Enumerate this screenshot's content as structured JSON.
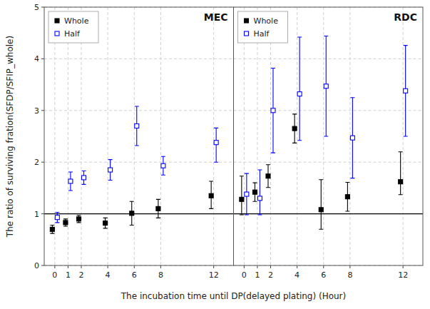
{
  "chart_data": [
    {
      "type": "scatter",
      "title": "MEC",
      "x": [
        0,
        1,
        2,
        4,
        6,
        8,
        12
      ],
      "series": [
        {
          "name": "Whole",
          "color": "#000000",
          "marker": "square",
          "values": [
            0.7,
            0.83,
            0.9,
            0.82,
            1.01,
            1.1,
            1.35
          ],
          "error_low": [
            0.08,
            0.07,
            0.07,
            0.1,
            0.23,
            0.18,
            0.25
          ],
          "error_high": [
            0.08,
            0.07,
            0.07,
            0.1,
            0.23,
            0.18,
            0.28
          ]
        },
        {
          "name": "Half",
          "color": "#0000ff",
          "marker": "open-square",
          "values": [
            0.93,
            1.63,
            1.7,
            1.85,
            2.7,
            1.93,
            2.38
          ],
          "error_low": [
            0.1,
            0.18,
            0.13,
            0.2,
            0.38,
            0.18,
            0.38
          ],
          "error_high": [
            0.1,
            0.18,
            0.13,
            0.2,
            0.38,
            0.18,
            0.28
          ]
        }
      ],
      "hline": 1.0,
      "xlim": [
        -0.8,
        13.5
      ],
      "xticks": [
        0,
        1,
        2,
        4,
        6,
        8,
        12
      ],
      "ylim": [
        0,
        5
      ],
      "yticks": [
        0,
        1,
        2,
        3,
        4,
        5
      ],
      "x_label": "The incubation time until DP(delayed plating) (Hour)",
      "y_label": "The ratio of surviving fration(SFDP/SFIP_whole)",
      "grid": true,
      "legend": "upper left"
    },
    {
      "type": "scatter",
      "title": "RDC",
      "x": [
        0,
        1,
        2,
        4,
        6,
        8,
        12
      ],
      "series": [
        {
          "name": "Whole",
          "color": "#000000",
          "marker": "square",
          "values": [
            1.28,
            1.42,
            1.73,
            2.65,
            1.08,
            1.33,
            1.62
          ],
          "error_low": [
            0.3,
            0.18,
            0.22,
            0.28,
            0.38,
            0.28,
            0.25
          ],
          "error_high": [
            0.45,
            0.18,
            0.22,
            0.28,
            0.58,
            0.28,
            0.58
          ]
        },
        {
          "name": "Half",
          "color": "#0000ff",
          "marker": "open-square",
          "values": [
            1.38,
            1.3,
            3.0,
            3.32,
            3.47,
            2.47,
            3.38
          ],
          "error_low": [
            0.4,
            0.32,
            0.82,
            0.9,
            0.97,
            0.78,
            0.88
          ],
          "error_high": [
            0.4,
            0.55,
            0.82,
            1.1,
            0.97,
            0.78,
            0.88
          ]
        }
      ],
      "hline": 1.0,
      "xlim": [
        -0.8,
        13.5
      ],
      "xticks": [
        0,
        1,
        2,
        4,
        6,
        8,
        12
      ],
      "ylim": [
        0,
        5
      ],
      "yticks": [
        0,
        1,
        2,
        3,
        4,
        5
      ],
      "tick_labels": "x",
      "grid": true,
      "legend": "upper left"
    }
  ]
}
